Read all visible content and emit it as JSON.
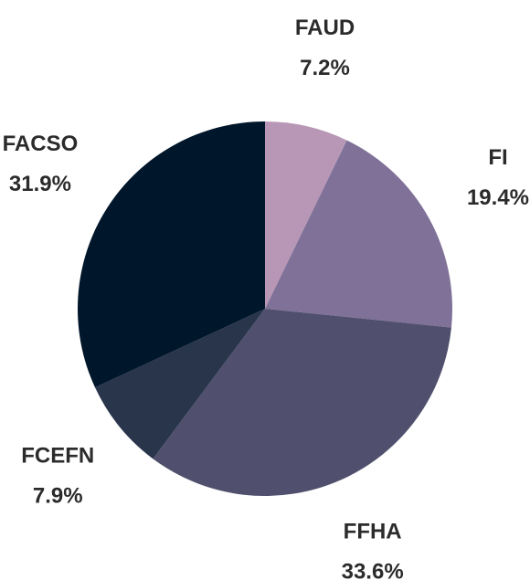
{
  "chart_data": {
    "type": "pie",
    "categories": [
      "FAUD",
      "FI",
      "FFHA",
      "FCEFN",
      "FACSO"
    ],
    "values": [
      7.2,
      19.4,
      33.6,
      7.9,
      31.9
    ],
    "value_labels": [
      "7.2%",
      "19.4%",
      "33.6%",
      "7.9%",
      "31.9%"
    ],
    "colors": [
      "#b897b6",
      "#7f7198",
      "#50506e",
      "#28354b",
      "#00162a"
    ]
  }
}
